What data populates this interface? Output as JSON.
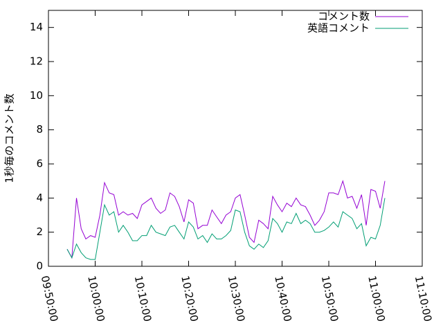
{
  "chart_data": {
    "type": "line",
    "y_label": "1秒毎のコメント数",
    "x": [
      "09:54:00",
      "09:55:00",
      "09:56:00",
      "09:57:00",
      "09:58:00",
      "09:59:00",
      "10:00:00",
      "10:01:00",
      "10:02:00",
      "10:03:00",
      "10:04:00",
      "10:05:00",
      "10:06:00",
      "10:07:00",
      "10:08:00",
      "10:09:00",
      "10:10:00",
      "10:11:00",
      "10:12:00",
      "10:13:00",
      "10:14:00",
      "10:15:00",
      "10:16:00",
      "10:17:00",
      "10:18:00",
      "10:19:00",
      "10:20:00",
      "10:21:00",
      "10:22:00",
      "10:23:00",
      "10:24:00",
      "10:25:00",
      "10:26:00",
      "10:27:00",
      "10:28:00",
      "10:29:00",
      "10:30:00",
      "10:31:00",
      "10:32:00",
      "10:33:00",
      "10:34:00",
      "10:35:00",
      "10:36:00",
      "10:37:00",
      "10:38:00",
      "10:39:00",
      "10:40:00",
      "10:41:00",
      "10:42:00",
      "10:43:00",
      "10:44:00",
      "10:45:00",
      "10:46:00",
      "10:47:00",
      "10:48:00",
      "10:49:00",
      "10:50:00",
      "10:51:00",
      "10:52:00",
      "10:53:00",
      "10:54:00",
      "10:55:00",
      "10:56:00",
      "10:57:00",
      "10:58:00",
      "10:59:00",
      "11:00:00",
      "11:01:00",
      "11:02:00"
    ],
    "series": [
      {
        "name": "コメント数",
        "color": "#9400d3",
        "values": [
          1.0,
          0.5,
          4.0,
          2.2,
          1.6,
          1.8,
          1.7,
          3.0,
          4.9,
          4.3,
          4.2,
          3.0,
          3.2,
          3.0,
          3.1,
          2.8,
          3.6,
          3.8,
          4.0,
          3.4,
          3.1,
          3.3,
          4.3,
          4.1,
          3.5,
          2.6,
          3.9,
          3.7,
          2.2,
          2.4,
          2.4,
          3.3,
          2.9,
          2.5,
          3.0,
          3.2,
          4.0,
          4.2,
          3.0,
          1.7,
          1.4,
          2.7,
          2.5,
          2.2,
          4.1,
          3.6,
          3.2,
          3.7,
          3.5,
          4.0,
          3.6,
          3.5,
          3.0,
          2.4,
          2.7,
          3.2,
          4.3,
          4.3,
          4.2,
          5.0,
          4.0,
          4.1,
          3.4,
          4.2,
          2.4,
          4.5,
          4.4,
          3.4,
          5.0
        ]
      },
      {
        "name": "英語コメント",
        "color": "#009e73",
        "values": [
          1.0,
          0.5,
          1.3,
          0.8,
          0.5,
          0.4,
          0.4,
          2.0,
          3.6,
          3.0,
          3.2,
          2.0,
          2.4,
          2.0,
          1.5,
          1.5,
          1.8,
          1.8,
          2.4,
          2.0,
          1.9,
          1.8,
          2.3,
          2.4,
          2.0,
          1.6,
          2.6,
          2.3,
          1.6,
          1.8,
          1.4,
          1.9,
          1.6,
          1.6,
          1.8,
          2.1,
          3.3,
          3.2,
          2.0,
          1.2,
          1.0,
          1.3,
          1.1,
          1.5,
          2.8,
          2.5,
          2.0,
          2.6,
          2.5,
          3.1,
          2.5,
          2.7,
          2.5,
          2.0,
          2.0,
          2.1,
          2.3,
          2.6,
          2.3,
          3.2,
          3.0,
          2.8,
          2.2,
          2.5,
          1.2,
          1.7,
          1.6,
          2.4,
          4.0
        ]
      }
    ],
    "xlim": [
      "09:50:00",
      "11:10:00"
    ],
    "xticks": [
      "09:50:00",
      "10:00:00",
      "10:10:00",
      "10:20:00",
      "10:30:00",
      "10:40:00",
      "10:50:00",
      "11:00:00",
      "11:10:00"
    ],
    "ylim": [
      0,
      15
    ],
    "yticks": [
      0,
      2,
      4,
      6,
      8,
      10,
      12,
      14
    ],
    "legend": "top-right"
  }
}
